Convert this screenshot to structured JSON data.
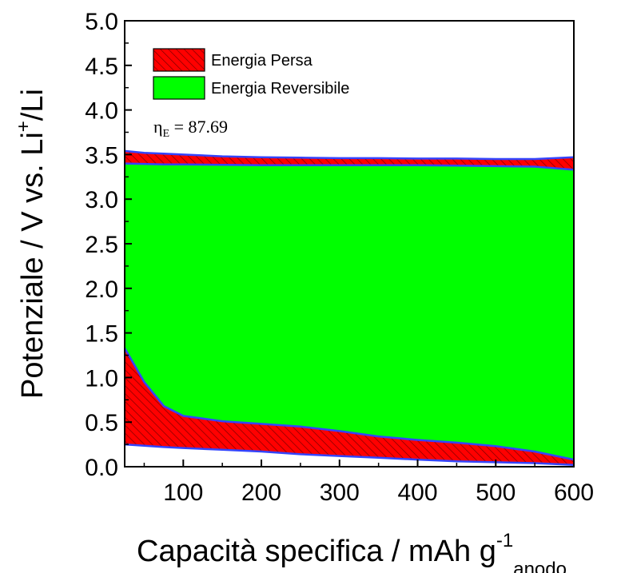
{
  "chart_data": {
    "type": "area",
    "xlabel": {
      "main": "Capacità specifica / mAh g",
      "sup": "-1",
      "sub": "anodo"
    },
    "ylabel": {
      "main": "Potenziale / V vs. Li",
      "sup": "+",
      "tail": "/Li"
    },
    "xlim": [
      25,
      600
    ],
    "ylim": [
      0,
      5.0
    ],
    "xticks": [
      100,
      200,
      300,
      400,
      500,
      600
    ],
    "xtick_labels": [
      "100",
      "200",
      "300",
      "400",
      "500",
      "600"
    ],
    "yticks": [
      0,
      0.5,
      1.0,
      1.5,
      2.0,
      2.5,
      3.0,
      3.5,
      4.0,
      4.5,
      5.0
    ],
    "ytick_labels": [
      "0.0",
      "0.5",
      "1.0",
      "1.5",
      "2.0",
      "2.5",
      "3.0",
      "3.5",
      "4.0",
      "4.5",
      "5.0"
    ],
    "legend": {
      "placement": "top-left",
      "entries": [
        {
          "label": "Energia Persa",
          "style": "hatched"
        },
        {
          "label": "Energia Reversibile",
          "style": "solid"
        }
      ]
    },
    "annotation": {
      "symbol": "η",
      "subscript": "E",
      "text": " = 87.69"
    },
    "curves": {
      "x": [
        25,
        50,
        75,
        100,
        150,
        200,
        250,
        300,
        350,
        400,
        450,
        500,
        550,
        600
      ],
      "battery_charge": [
        3.54,
        3.52,
        3.51,
        3.5,
        3.48,
        3.47,
        3.465,
        3.46,
        3.46,
        3.455,
        3.455,
        3.45,
        3.45,
        3.47
      ],
      "battery_discharge": [
        3.4,
        3.395,
        3.39,
        3.39,
        3.385,
        3.38,
        3.38,
        3.38,
        3.38,
        3.38,
        3.375,
        3.37,
        3.365,
        3.33
      ],
      "anode_upper": [
        1.33,
        0.95,
        0.68,
        0.57,
        0.51,
        0.48,
        0.45,
        0.4,
        0.34,
        0.3,
        0.27,
        0.23,
        0.17,
        0.08
      ],
      "anode_lower": [
        0.25,
        0.235,
        0.22,
        0.21,
        0.19,
        0.17,
        0.14,
        0.12,
        0.1,
        0.08,
        0.06,
        0.05,
        0.04,
        0.02
      ]
    },
    "colors": {
      "lost_energy": "#ff0000",
      "reversible_energy": "#00ff00",
      "hatch": "#7a0000",
      "curve": "#3344ff",
      "axis": "#000000"
    }
  }
}
